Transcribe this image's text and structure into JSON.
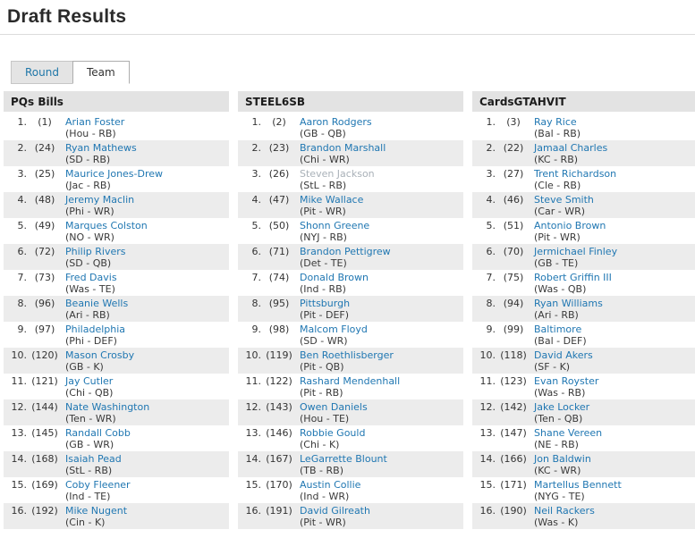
{
  "page": {
    "title": "Draft Results"
  },
  "tabs": [
    {
      "label": "Round",
      "active": false
    },
    {
      "label": "Team",
      "active": true
    }
  ],
  "colors": {
    "link_blue": "#2077b2",
    "grayed_player": "#a9b1b8",
    "row_stripe": "#ececec",
    "column_header_bg": "#e3e3e3",
    "inactive_tab_bg": "#e4e4e4",
    "text_dark": "#333333"
  },
  "teams": [
    {
      "name": "PQs Bills",
      "picks": [
        {
          "round": "1.",
          "overall": "(1)",
          "player": "Arian Foster",
          "detail": "(Hou - RB)"
        },
        {
          "round": "2.",
          "overall": "(24)",
          "player": "Ryan Mathews",
          "detail": "(SD - RB)"
        },
        {
          "round": "3.",
          "overall": "(25)",
          "player": "Maurice Jones-Drew",
          "detail": "(Jac - RB)"
        },
        {
          "round": "4.",
          "overall": "(48)",
          "player": "Jeremy Maclin",
          "detail": "(Phi - WR)"
        },
        {
          "round": "5.",
          "overall": "(49)",
          "player": "Marques Colston",
          "detail": "(NO - WR)"
        },
        {
          "round": "6.",
          "overall": "(72)",
          "player": "Philip Rivers",
          "detail": "(SD - QB)"
        },
        {
          "round": "7.",
          "overall": "(73)",
          "player": "Fred Davis",
          "detail": "(Was - TE)"
        },
        {
          "round": "8.",
          "overall": "(96)",
          "player": "Beanie Wells",
          "detail": "(Ari - RB)"
        },
        {
          "round": "9.",
          "overall": "(97)",
          "player": "Philadelphia",
          "detail": "(Phi - DEF)"
        },
        {
          "round": "10.",
          "overall": "(120)",
          "player": "Mason Crosby",
          "detail": "(GB - K)"
        },
        {
          "round": "11.",
          "overall": "(121)",
          "player": "Jay Cutler",
          "detail": "(Chi - QB)"
        },
        {
          "round": "12.",
          "overall": "(144)",
          "player": "Nate Washington",
          "detail": "(Ten - WR)"
        },
        {
          "round": "13.",
          "overall": "(145)",
          "player": "Randall Cobb",
          "detail": "(GB - WR)"
        },
        {
          "round": "14.",
          "overall": "(168)",
          "player": "Isaiah Pead",
          "detail": "(StL - RB)"
        },
        {
          "round": "15.",
          "overall": "(169)",
          "player": "Coby Fleener",
          "detail": "(Ind - TE)"
        },
        {
          "round": "16.",
          "overall": "(192)",
          "player": "Mike Nugent",
          "detail": "(Cin - K)"
        }
      ]
    },
    {
      "name": "STEEL6SB",
      "picks": [
        {
          "round": "1.",
          "overall": "(2)",
          "player": "Aaron Rodgers",
          "detail": "(GB - QB)"
        },
        {
          "round": "2.",
          "overall": "(23)",
          "player": "Brandon Marshall",
          "detail": "(Chi - WR)"
        },
        {
          "round": "3.",
          "overall": "(26)",
          "player": "Steven Jackson",
          "detail": "(StL - RB)",
          "grayed": true
        },
        {
          "round": "4.",
          "overall": "(47)",
          "player": "Mike Wallace",
          "detail": "(Pit - WR)"
        },
        {
          "round": "5.",
          "overall": "(50)",
          "player": "Shonn Greene",
          "detail": "(NYJ - RB)"
        },
        {
          "round": "6.",
          "overall": "(71)",
          "player": "Brandon Pettigrew",
          "detail": "(Det - TE)"
        },
        {
          "round": "7.",
          "overall": "(74)",
          "player": "Donald Brown",
          "detail": "(Ind - RB)"
        },
        {
          "round": "8.",
          "overall": "(95)",
          "player": "Pittsburgh",
          "detail": "(Pit - DEF)"
        },
        {
          "round": "9.",
          "overall": "(98)",
          "player": "Malcom Floyd",
          "detail": "(SD - WR)"
        },
        {
          "round": "10.",
          "overall": "(119)",
          "player": "Ben Roethlisberger",
          "detail": "(Pit - QB)"
        },
        {
          "round": "11.",
          "overall": "(122)",
          "player": "Rashard Mendenhall",
          "detail": "(Pit - RB)"
        },
        {
          "round": "12.",
          "overall": "(143)",
          "player": "Owen Daniels",
          "detail": "(Hou - TE)"
        },
        {
          "round": "13.",
          "overall": "(146)",
          "player": "Robbie Gould",
          "detail": "(Chi - K)"
        },
        {
          "round": "14.",
          "overall": "(167)",
          "player": "LeGarrette Blount",
          "detail": "(TB - RB)"
        },
        {
          "round": "15.",
          "overall": "(170)",
          "player": "Austin Collie",
          "detail": "(Ind - WR)"
        },
        {
          "round": "16.",
          "overall": "(191)",
          "player": "David Gilreath",
          "detail": "(Pit - WR)"
        }
      ]
    },
    {
      "name": "CardsGTAHVIT",
      "picks": [
        {
          "round": "1.",
          "overall": "(3)",
          "player": "Ray Rice",
          "detail": "(Bal - RB)"
        },
        {
          "round": "2.",
          "overall": "(22)",
          "player": "Jamaal Charles",
          "detail": "(KC - RB)"
        },
        {
          "round": "3.",
          "overall": "(27)",
          "player": "Trent Richardson",
          "detail": "(Cle - RB)"
        },
        {
          "round": "4.",
          "overall": "(46)",
          "player": "Steve Smith",
          "detail": "(Car - WR)"
        },
        {
          "round": "5.",
          "overall": "(51)",
          "player": "Antonio Brown",
          "detail": "(Pit - WR)"
        },
        {
          "round": "6.",
          "overall": "(70)",
          "player": "Jermichael Finley",
          "detail": "(GB - TE)"
        },
        {
          "round": "7.",
          "overall": "(75)",
          "player": "Robert Griffin III",
          "detail": "(Was - QB)"
        },
        {
          "round": "8.",
          "overall": "(94)",
          "player": "Ryan Williams",
          "detail": "(Ari - RB)"
        },
        {
          "round": "9.",
          "overall": "(99)",
          "player": "Baltimore",
          "detail": "(Bal - DEF)"
        },
        {
          "round": "10.",
          "overall": "(118)",
          "player": "David Akers",
          "detail": "(SF - K)"
        },
        {
          "round": "11.",
          "overall": "(123)",
          "player": "Evan Royster",
          "detail": "(Was - RB)"
        },
        {
          "round": "12.",
          "overall": "(142)",
          "player": "Jake Locker",
          "detail": "(Ten - QB)"
        },
        {
          "round": "13.",
          "overall": "(147)",
          "player": "Shane Vereen",
          "detail": "(NE - RB)"
        },
        {
          "round": "14.",
          "overall": "(166)",
          "player": "Jon Baldwin",
          "detail": "(KC - WR)"
        },
        {
          "round": "15.",
          "overall": "(171)",
          "player": "Martellus Bennett",
          "detail": "(NYG - TE)"
        },
        {
          "round": "16.",
          "overall": "(190)",
          "player": "Neil Rackers",
          "detail": "(Was - K)"
        }
      ]
    }
  ]
}
